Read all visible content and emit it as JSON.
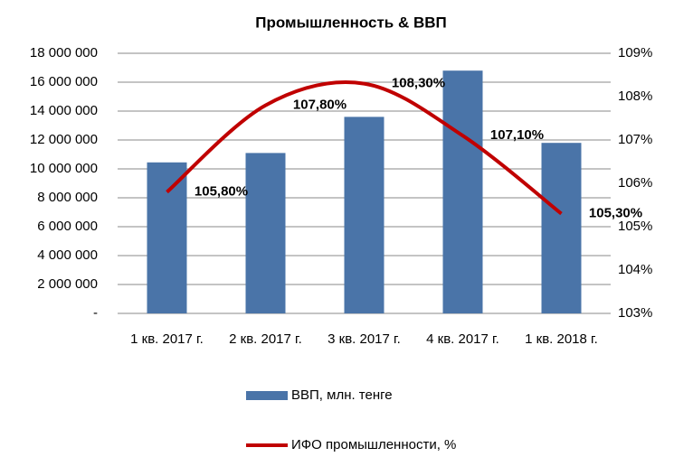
{
  "chart_data": {
    "type": "bar",
    "title": "Промышленность & ВВП",
    "categories": [
      "1 кв. 2017 г.",
      "2 кв. 2017 г.",
      "3 кв. 2017 г.",
      "4 кв. 2017 г.",
      "1 кв. 2018 г."
    ],
    "series": [
      {
        "name": "ВВП, млн. тенге",
        "type": "bar",
        "color": "#4a74a8",
        "values": [
          10450000,
          11100000,
          13600000,
          16800000,
          11800000
        ]
      },
      {
        "name": "ИФО промышленности, %",
        "type": "line",
        "axis": "y2",
        "color": "#c00000",
        "values": [
          105.8,
          107.8,
          108.3,
          107.1,
          105.3
        ],
        "value_labels": [
          "105,80%",
          "107,80%",
          "108,30%",
          "107,10%",
          "105,30%"
        ]
      }
    ],
    "ylim": [
      0,
      18000000
    ],
    "yticks": [
      {
        "value": 0,
        "label": "-"
      },
      {
        "value": 2000000,
        "label": "2 000 000"
      },
      {
        "value": 4000000,
        "label": "4 000 000"
      },
      {
        "value": 6000000,
        "label": "6 000 000"
      },
      {
        "value": 8000000,
        "label": "8 000 000"
      },
      {
        "value": 10000000,
        "label": "10 000 000"
      },
      {
        "value": 12000000,
        "label": "12 000 000"
      },
      {
        "value": 14000000,
        "label": "14 000 000"
      },
      {
        "value": 16000000,
        "label": "16 000 000"
      },
      {
        "value": 18000000,
        "label": "18 000 000"
      }
    ],
    "y2lim": [
      103,
      109
    ],
    "y2ticks": [
      {
        "value": 103,
        "label": "103%"
      },
      {
        "value": 104,
        "label": "104%"
      },
      {
        "value": 105,
        "label": "105%"
      },
      {
        "value": 106,
        "label": "106%"
      },
      {
        "value": 107,
        "label": "107%"
      },
      {
        "value": 108,
        "label": "108%"
      },
      {
        "value": 109,
        "label": "109%"
      }
    ],
    "grid": true
  }
}
